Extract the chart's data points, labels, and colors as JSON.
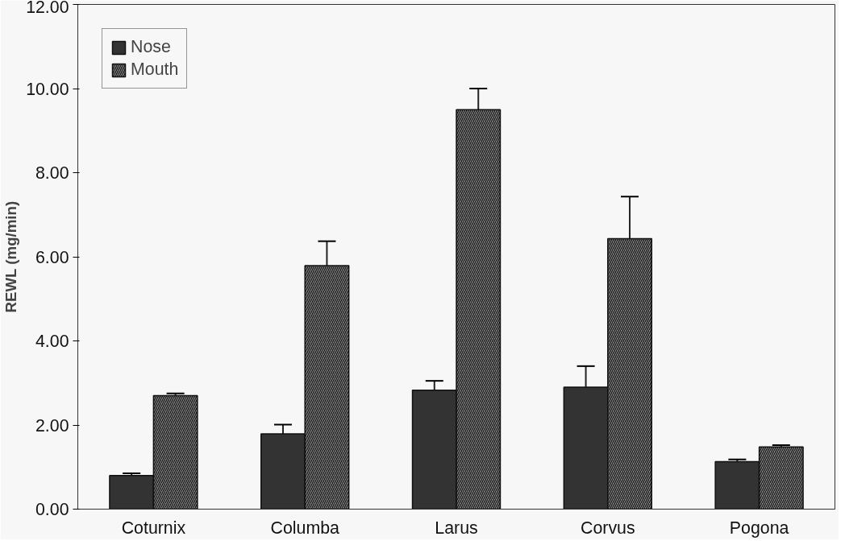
{
  "chart_data": {
    "type": "bar",
    "ylabel": "REWL (mg/min)",
    "categories": [
      "Coturnix",
      "Columba",
      "Larus",
      "Corvus",
      "Pogona"
    ],
    "series": [
      {
        "name": "Nose",
        "color": "#333333",
        "values": [
          0.8,
          1.79,
          2.83,
          2.9,
          1.13
        ],
        "errors": [
          0.05,
          0.22,
          0.22,
          0.5,
          0.05
        ]
      },
      {
        "name": "Mouth",
        "color": "#8a8a8a",
        "values": [
          2.7,
          5.79,
          9.5,
          6.43,
          1.48
        ],
        "errors": [
          0.05,
          0.58,
          0.5,
          1.0,
          0.04
        ]
      }
    ],
    "ylim": [
      0,
      12
    ],
    "yticks": [
      {
        "value": 0,
        "label": "0.00"
      },
      {
        "value": 2,
        "label": "2.00"
      },
      {
        "value": 4,
        "label": "4.00"
      },
      {
        "value": 6,
        "label": "6.00"
      },
      {
        "value": 8,
        "label": "8.00"
      },
      {
        "value": 10,
        "label": "10.00"
      },
      {
        "value": 12,
        "label": "12.00"
      }
    ],
    "grid": false,
    "legend": "top left"
  }
}
